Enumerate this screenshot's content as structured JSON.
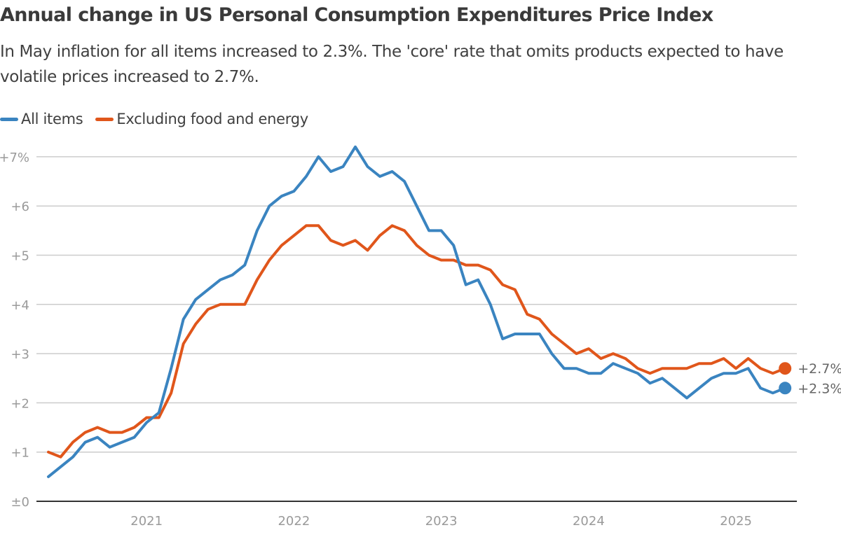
{
  "title": "Annual change in US Personal Consumption Expenditures Price Index",
  "subtitle": "In May inflation for all items increased to 2.3%. The 'core' rate that omits products expected to have volatile prices increased to 2.7%.",
  "chart_data": {
    "type": "line",
    "title": "Annual change in US Personal Consumption Expenditures Price Index",
    "xlabel": "",
    "ylabel": "",
    "x_start": "2020-05",
    "x_end": "2025-05",
    "x_frequency": "monthly",
    "x_ticks": [
      "2021",
      "2022",
      "2023",
      "2024",
      "2025"
    ],
    "y_ticks": [
      "±0",
      "+1",
      "+2",
      "+3",
      "+4",
      "+5",
      "+6",
      "+7%"
    ],
    "y_tick_values": [
      0,
      1,
      2,
      3,
      4,
      5,
      6,
      7
    ],
    "ylim": [
      0,
      7.2
    ],
    "grid": true,
    "legend_position": "top-left",
    "series": [
      {
        "name": "All items",
        "color": "#3a84c0",
        "end_label": "+2.3%",
        "values": [
          0.5,
          0.7,
          0.9,
          1.2,
          1.3,
          1.1,
          1.2,
          1.3,
          1.6,
          1.8,
          2.7,
          3.7,
          4.1,
          4.3,
          4.5,
          4.6,
          4.8,
          5.5,
          6.0,
          6.2,
          6.3,
          6.6,
          7.0,
          6.7,
          6.8,
          7.2,
          6.8,
          6.6,
          6.7,
          6.5,
          6.0,
          5.5,
          5.5,
          5.2,
          4.4,
          4.5,
          4.0,
          3.3,
          3.4,
          3.4,
          3.4,
          3.0,
          2.7,
          2.7,
          2.6,
          2.6,
          2.8,
          2.7,
          2.6,
          2.4,
          2.5,
          2.3,
          2.1,
          2.3,
          2.5,
          2.6,
          2.6,
          2.7,
          2.3,
          2.2,
          2.3
        ]
      },
      {
        "name": "Excluding food and energy",
        "color": "#e0561b",
        "end_label": "+2.7%",
        "values": [
          1.0,
          0.9,
          1.2,
          1.4,
          1.5,
          1.4,
          1.4,
          1.5,
          1.7,
          1.7,
          2.2,
          3.2,
          3.6,
          3.9,
          4.0,
          4.0,
          4.0,
          4.5,
          4.9,
          5.2,
          5.4,
          5.6,
          5.6,
          5.3,
          5.2,
          5.3,
          5.1,
          5.4,
          5.6,
          5.5,
          5.2,
          5.0,
          4.9,
          4.9,
          4.8,
          4.8,
          4.7,
          4.4,
          4.3,
          3.8,
          3.7,
          3.4,
          3.2,
          3.0,
          3.1,
          2.9,
          3.0,
          2.9,
          2.7,
          2.6,
          2.7,
          2.7,
          2.7,
          2.8,
          2.8,
          2.9,
          2.7,
          2.9,
          2.7,
          2.6,
          2.7
        ]
      }
    ]
  }
}
